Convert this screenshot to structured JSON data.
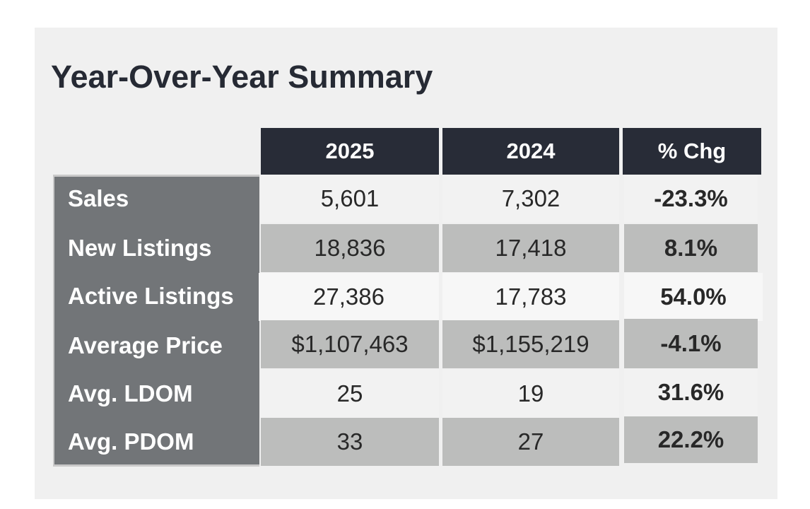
{
  "title": "Year-Over-Year Summary",
  "columns": [
    "2025",
    "2024",
    "% Chg"
  ],
  "rows": [
    {
      "label": "Sales",
      "v2025": "5,601",
      "v2024": "7,302",
      "chg": "-23.3%"
    },
    {
      "label": "New Listings",
      "v2025": "18,836",
      "v2024": "17,418",
      "chg": "8.1%"
    },
    {
      "label": "Active Listings",
      "v2025": "27,386",
      "v2024": "17,783",
      "chg": "54.0%"
    },
    {
      "label": "Average Price",
      "v2025": "$1,107,463",
      "v2024": "$1,155,219",
      "chg": "-4.1%"
    },
    {
      "label": "Avg. LDOM",
      "v2025": "25",
      "v2024": "19",
      "chg": "31.6%"
    },
    {
      "label": "Avg. PDOM",
      "v2025": "33",
      "v2024": "27",
      "chg": "22.2%"
    }
  ],
  "colors": {
    "header_bg": "#282c37",
    "label_bg": "#727578",
    "row_light": "#f2f2f2",
    "row_dark": "#bcbdbc",
    "card_bg": "#f0f0f0"
  }
}
